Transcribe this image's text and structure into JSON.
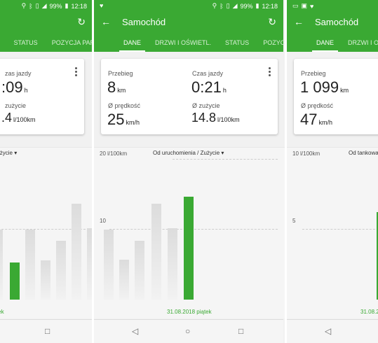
{
  "colors": {
    "accent": "#3aa933",
    "bar_inactive": "#e3e3e3",
    "background": "#f1f1f1"
  },
  "left": {
    "status": {
      "battery": "99%",
      "time": "12:18"
    },
    "tabs": [
      "L.",
      "STATUS",
      "POZYCJA PARKOW"
    ],
    "card": {
      "time_label": "zas jazdy",
      "time_value": ":09",
      "time_unit": "h",
      "cons_label": "zużycie",
      "cons_value": ".4",
      "cons_unit": "l/100km"
    },
    "chart": {
      "selector": "/ Zużycie",
      "date": "wtorek"
    }
  },
  "center": {
    "status": {
      "battery": "99%",
      "time": "12:18"
    },
    "title": "Samochód",
    "tabs": [
      "DANE",
      "DRZWI I OŚWIETL.",
      "STATUS",
      "POZYCJA PARKOW"
    ],
    "card": {
      "dist_label": "Przebieg",
      "dist_value": "8",
      "dist_unit": "km",
      "time_label": "Czas jazdy",
      "time_value": "0:21",
      "time_unit": "h",
      "speed_label": "Ø prędkość",
      "speed_value": "25",
      "speed_unit": "km/h",
      "cons_label": "Ø zużycie",
      "cons_value": "14.8",
      "cons_unit": "l/100km"
    },
    "chart": {
      "ymax": "20 l/100km",
      "ymid": "10",
      "selector": "Od uruchomienia / Zużycie",
      "date": "31.08.2018 piątek"
    }
  },
  "right": {
    "title": "Samochód",
    "tabs": [
      "DANE",
      "DRZWI I OŚW"
    ],
    "card": {
      "dist_label": "Przebieg",
      "dist_value": "1 099",
      "dist_unit": "km",
      "speed_label": "Ø prędkość",
      "speed_value": "47",
      "speed_unit": "km/h"
    },
    "chart": {
      "ymax": "10 l/100km",
      "ymid": "5",
      "selector": "Od tankowa",
      "date": "31.08.2"
    }
  }
}
